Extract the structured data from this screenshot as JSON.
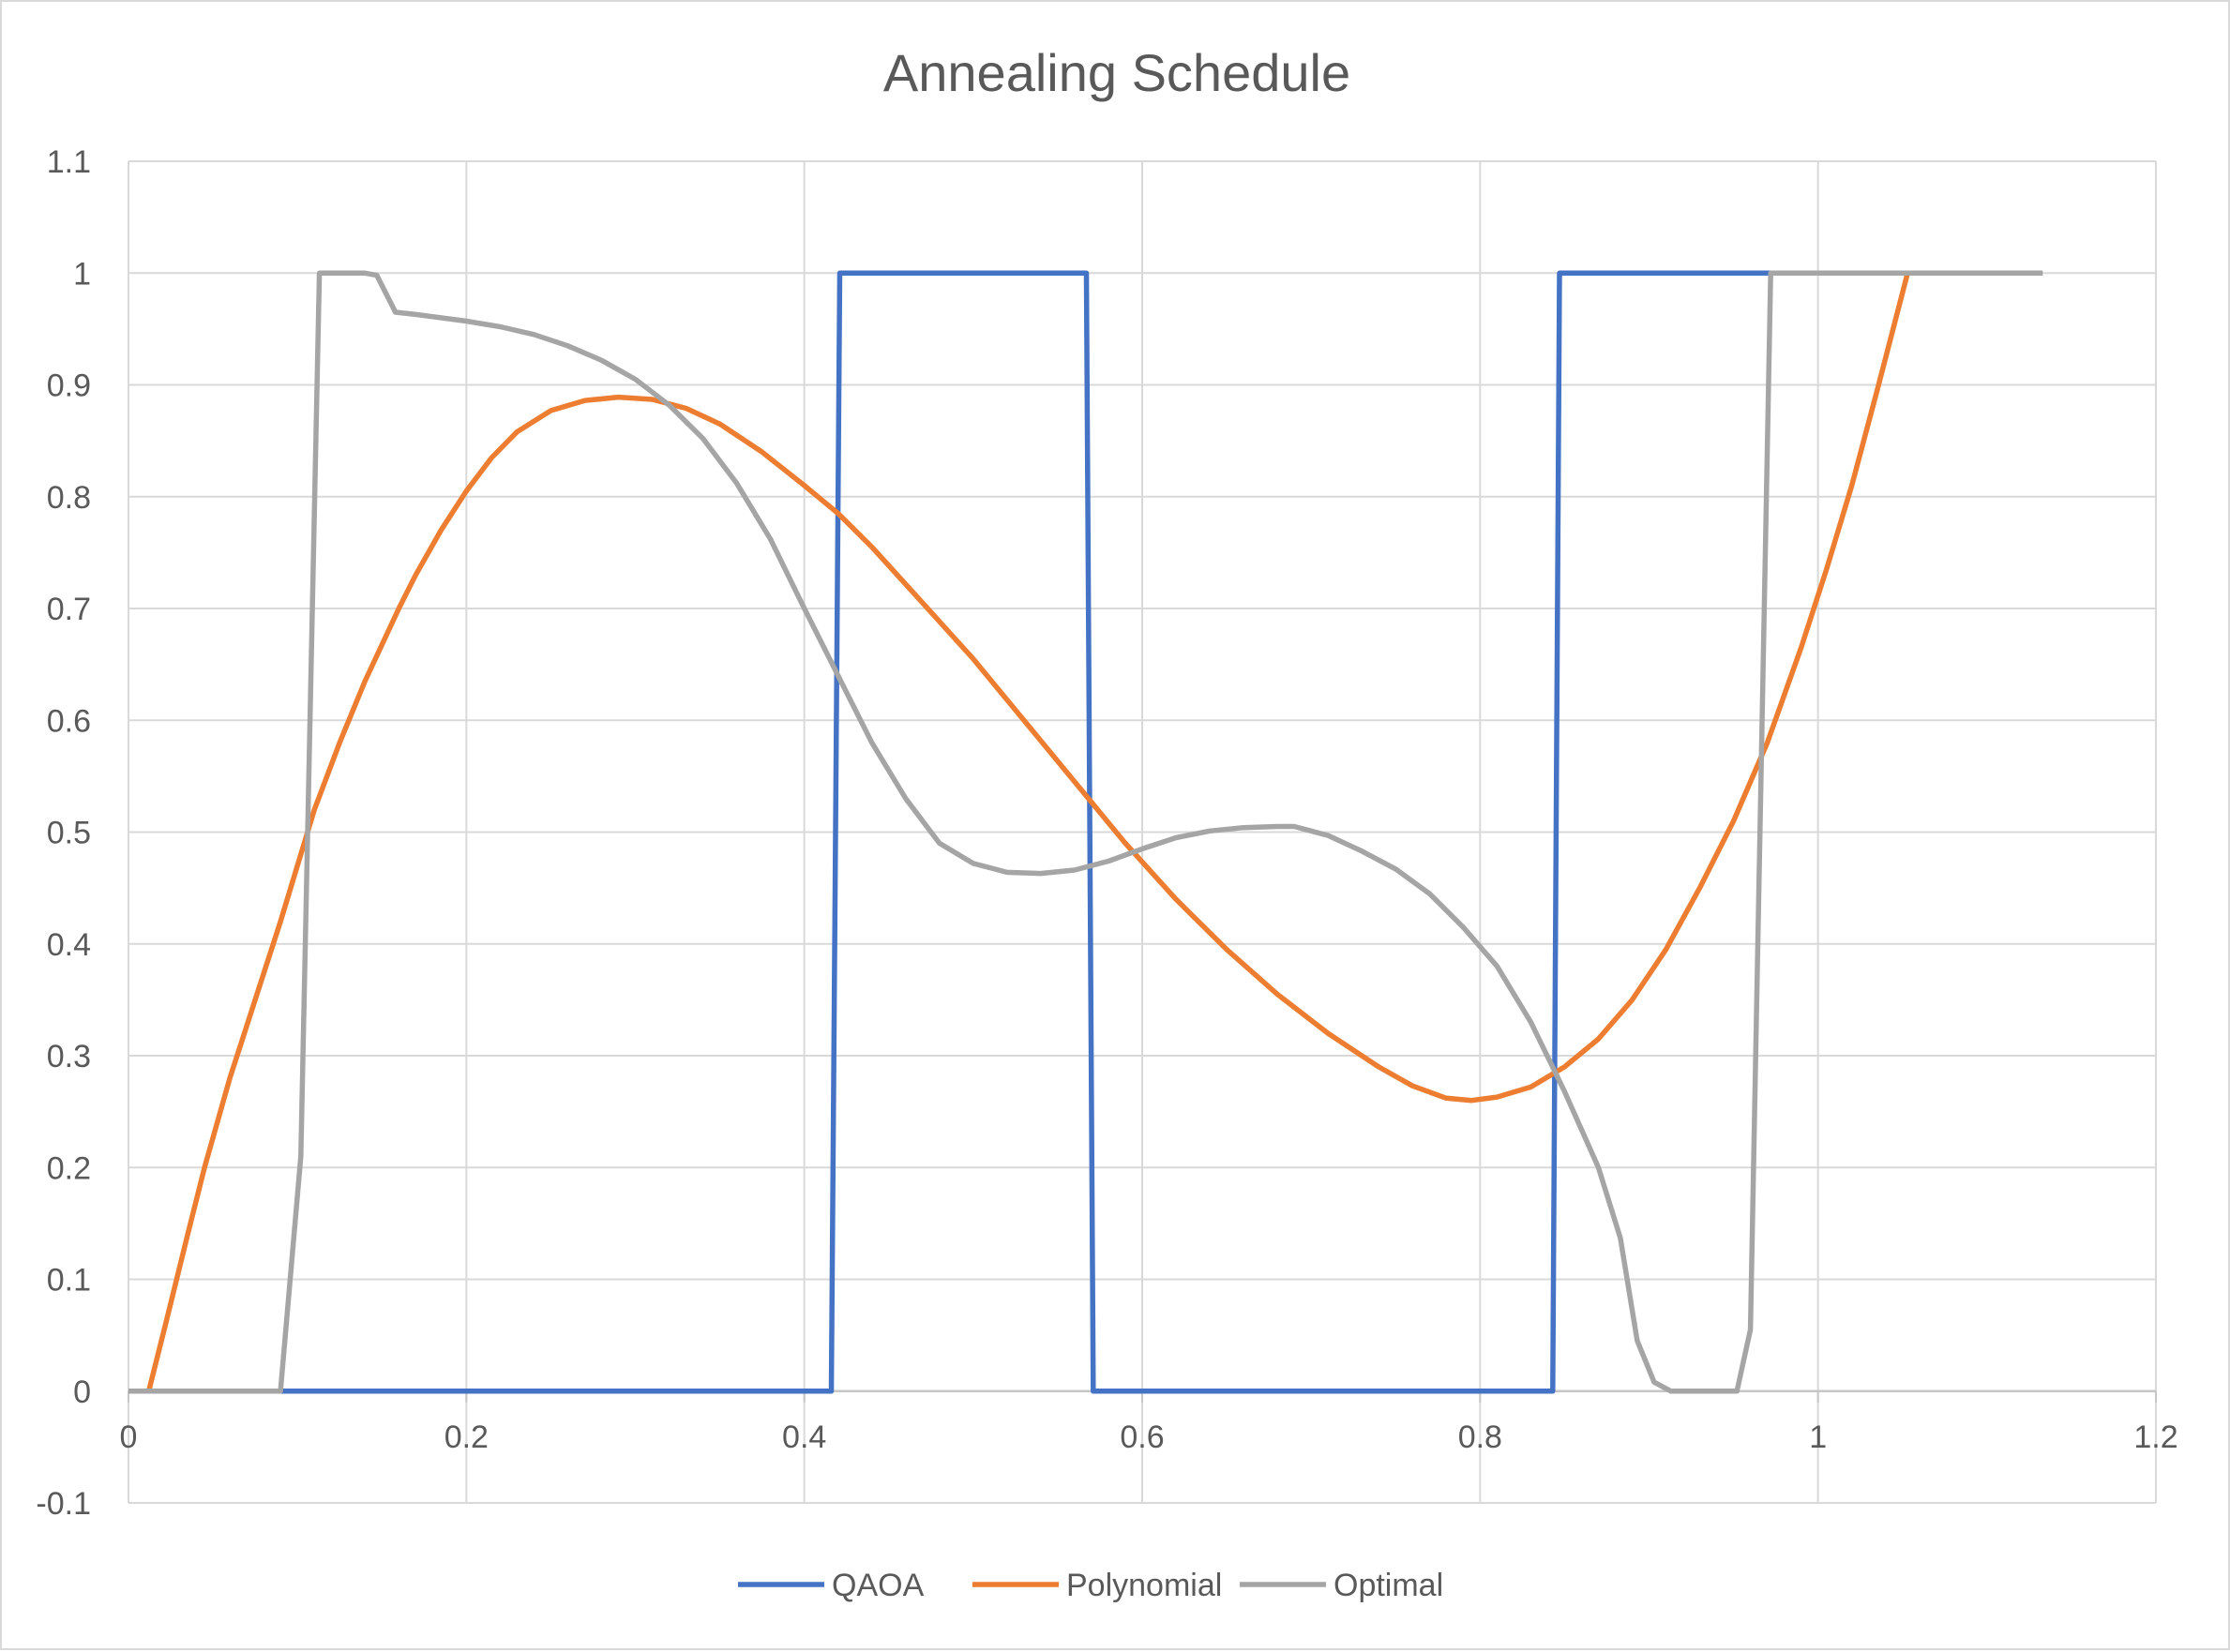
{
  "chart_data": {
    "type": "line",
    "title": "Annealing Schedule",
    "xlabel": "",
    "ylabel": "",
    "xlim": [
      0,
      1.2
    ],
    "ylim": [
      -0.1,
      1.1
    ],
    "x_ticks": [
      0,
      0.2,
      0.4,
      0.6,
      0.8,
      1,
      1.2
    ],
    "x_tick_labels": [
      "0",
      "0.2",
      "0.4",
      "0.6",
      "0.8",
      "1",
      "1.2"
    ],
    "y_ticks": [
      1.1,
      1,
      0.9,
      0.8,
      0.7,
      0.6,
      0.5,
      0.4,
      0.3,
      0.2,
      0.1,
      0,
      -0.1
    ],
    "y_tick_labels": [
      "1.1",
      "1",
      "0.9",
      "0.8",
      "0.7",
      "0.6",
      "0.5",
      "0.4",
      "0.3",
      "0.2",
      "0.1",
      "0",
      "-0.1"
    ],
    "grid": true,
    "legend_position": "bottom",
    "series": [
      {
        "name": "QAOA",
        "color": "#4472C4",
        "points": [
          [
            0,
            0
          ],
          [
            0.416,
            0
          ],
          [
            0.421,
            1
          ],
          [
            0.567,
            1
          ],
          [
            0.571,
            0
          ],
          [
            0.843,
            0
          ],
          [
            0.847,
            1
          ],
          [
            0.972,
            1
          ]
        ]
      },
      {
        "name": "Polynomial",
        "color": "#ED7D31",
        "points": [
          [
            0.012,
            0
          ],
          [
            0.022,
            0.06
          ],
          [
            0.035,
            0.14
          ],
          [
            0.045,
            0.2
          ],
          [
            0.06,
            0.28
          ],
          [
            0.075,
            0.35
          ],
          [
            0.09,
            0.42
          ],
          [
            0.11,
            0.52
          ],
          [
            0.125,
            0.58
          ],
          [
            0.14,
            0.635
          ],
          [
            0.16,
            0.7
          ],
          [
            0.17,
            0.73
          ],
          [
            0.185,
            0.77
          ],
          [
            0.2,
            0.805
          ],
          [
            0.215,
            0.835
          ],
          [
            0.23,
            0.858
          ],
          [
            0.25,
            0.877
          ],
          [
            0.27,
            0.886
          ],
          [
            0.29,
            0.889
          ],
          [
            0.31,
            0.887
          ],
          [
            0.33,
            0.879
          ],
          [
            0.35,
            0.865
          ],
          [
            0.375,
            0.84
          ],
          [
            0.4,
            0.81
          ],
          [
            0.42,
            0.785
          ],
          [
            0.44,
            0.755
          ],
          [
            0.47,
            0.705
          ],
          [
            0.5,
            0.655
          ],
          [
            0.53,
            0.6
          ],
          [
            0.56,
            0.545
          ],
          [
            0.59,
            0.49
          ],
          [
            0.62,
            0.44
          ],
          [
            0.65,
            0.395
          ],
          [
            0.68,
            0.355
          ],
          [
            0.71,
            0.32
          ],
          [
            0.74,
            0.29
          ],
          [
            0.76,
            0.273
          ],
          [
            0.78,
            0.262
          ],
          [
            0.795,
            0.26
          ],
          [
            0.81,
            0.263
          ],
          [
            0.83,
            0.272
          ],
          [
            0.85,
            0.29
          ],
          [
            0.87,
            0.315
          ],
          [
            0.89,
            0.35
          ],
          [
            0.91,
            0.395
          ],
          [
            0.93,
            0.45
          ],
          [
            0.95,
            0.51
          ],
          [
            0.97,
            0.58
          ],
          [
            0.99,
            0.665
          ],
          [
            1.005,
            0.735
          ],
          [
            1.02,
            0.81
          ],
          [
            1.035,
            0.895
          ],
          [
            1.053,
            1
          ]
        ]
      },
      {
        "name": "Optimal",
        "color": "#A5A5A5",
        "points": [
          [
            0,
            0
          ],
          [
            0.09,
            0
          ],
          [
            0.102,
            0.21
          ],
          [
            0.113,
            1
          ],
          [
            0.14,
            1
          ],
          [
            0.147,
            0.998
          ],
          [
            0.158,
            0.965
          ],
          [
            0.17,
            0.963
          ],
          [
            0.2,
            0.957
          ],
          [
            0.22,
            0.952
          ],
          [
            0.24,
            0.945
          ],
          [
            0.26,
            0.935
          ],
          [
            0.28,
            0.922
          ],
          [
            0.3,
            0.905
          ],
          [
            0.32,
            0.882
          ],
          [
            0.34,
            0.852
          ],
          [
            0.36,
            0.812
          ],
          [
            0.38,
            0.762
          ],
          [
            0.4,
            0.7
          ],
          [
            0.42,
            0.64
          ],
          [
            0.44,
            0.58
          ],
          [
            0.46,
            0.53
          ],
          [
            0.48,
            0.49
          ],
          [
            0.5,
            0.472
          ],
          [
            0.52,
            0.464
          ],
          [
            0.54,
            0.463
          ],
          [
            0.56,
            0.466
          ],
          [
            0.58,
            0.474
          ],
          [
            0.6,
            0.485
          ],
          [
            0.62,
            0.495
          ],
          [
            0.64,
            0.501
          ],
          [
            0.66,
            0.504
          ],
          [
            0.68,
            0.505
          ],
          [
            0.69,
            0.505
          ],
          [
            0.71,
            0.497
          ],
          [
            0.73,
            0.483
          ],
          [
            0.75,
            0.467
          ],
          [
            0.77,
            0.445
          ],
          [
            0.79,
            0.415
          ],
          [
            0.81,
            0.38
          ],
          [
            0.83,
            0.33
          ],
          [
            0.85,
            0.268
          ],
          [
            0.87,
            0.2
          ],
          [
            0.883,
            0.137
          ],
          [
            0.893,
            0.045
          ],
          [
            0.903,
            0.008
          ],
          [
            0.913,
            0
          ],
          [
            0.952,
            0
          ],
          [
            0.96,
            0.055
          ],
          [
            0.972,
            1
          ],
          [
            1.133,
            1
          ]
        ]
      }
    ]
  }
}
